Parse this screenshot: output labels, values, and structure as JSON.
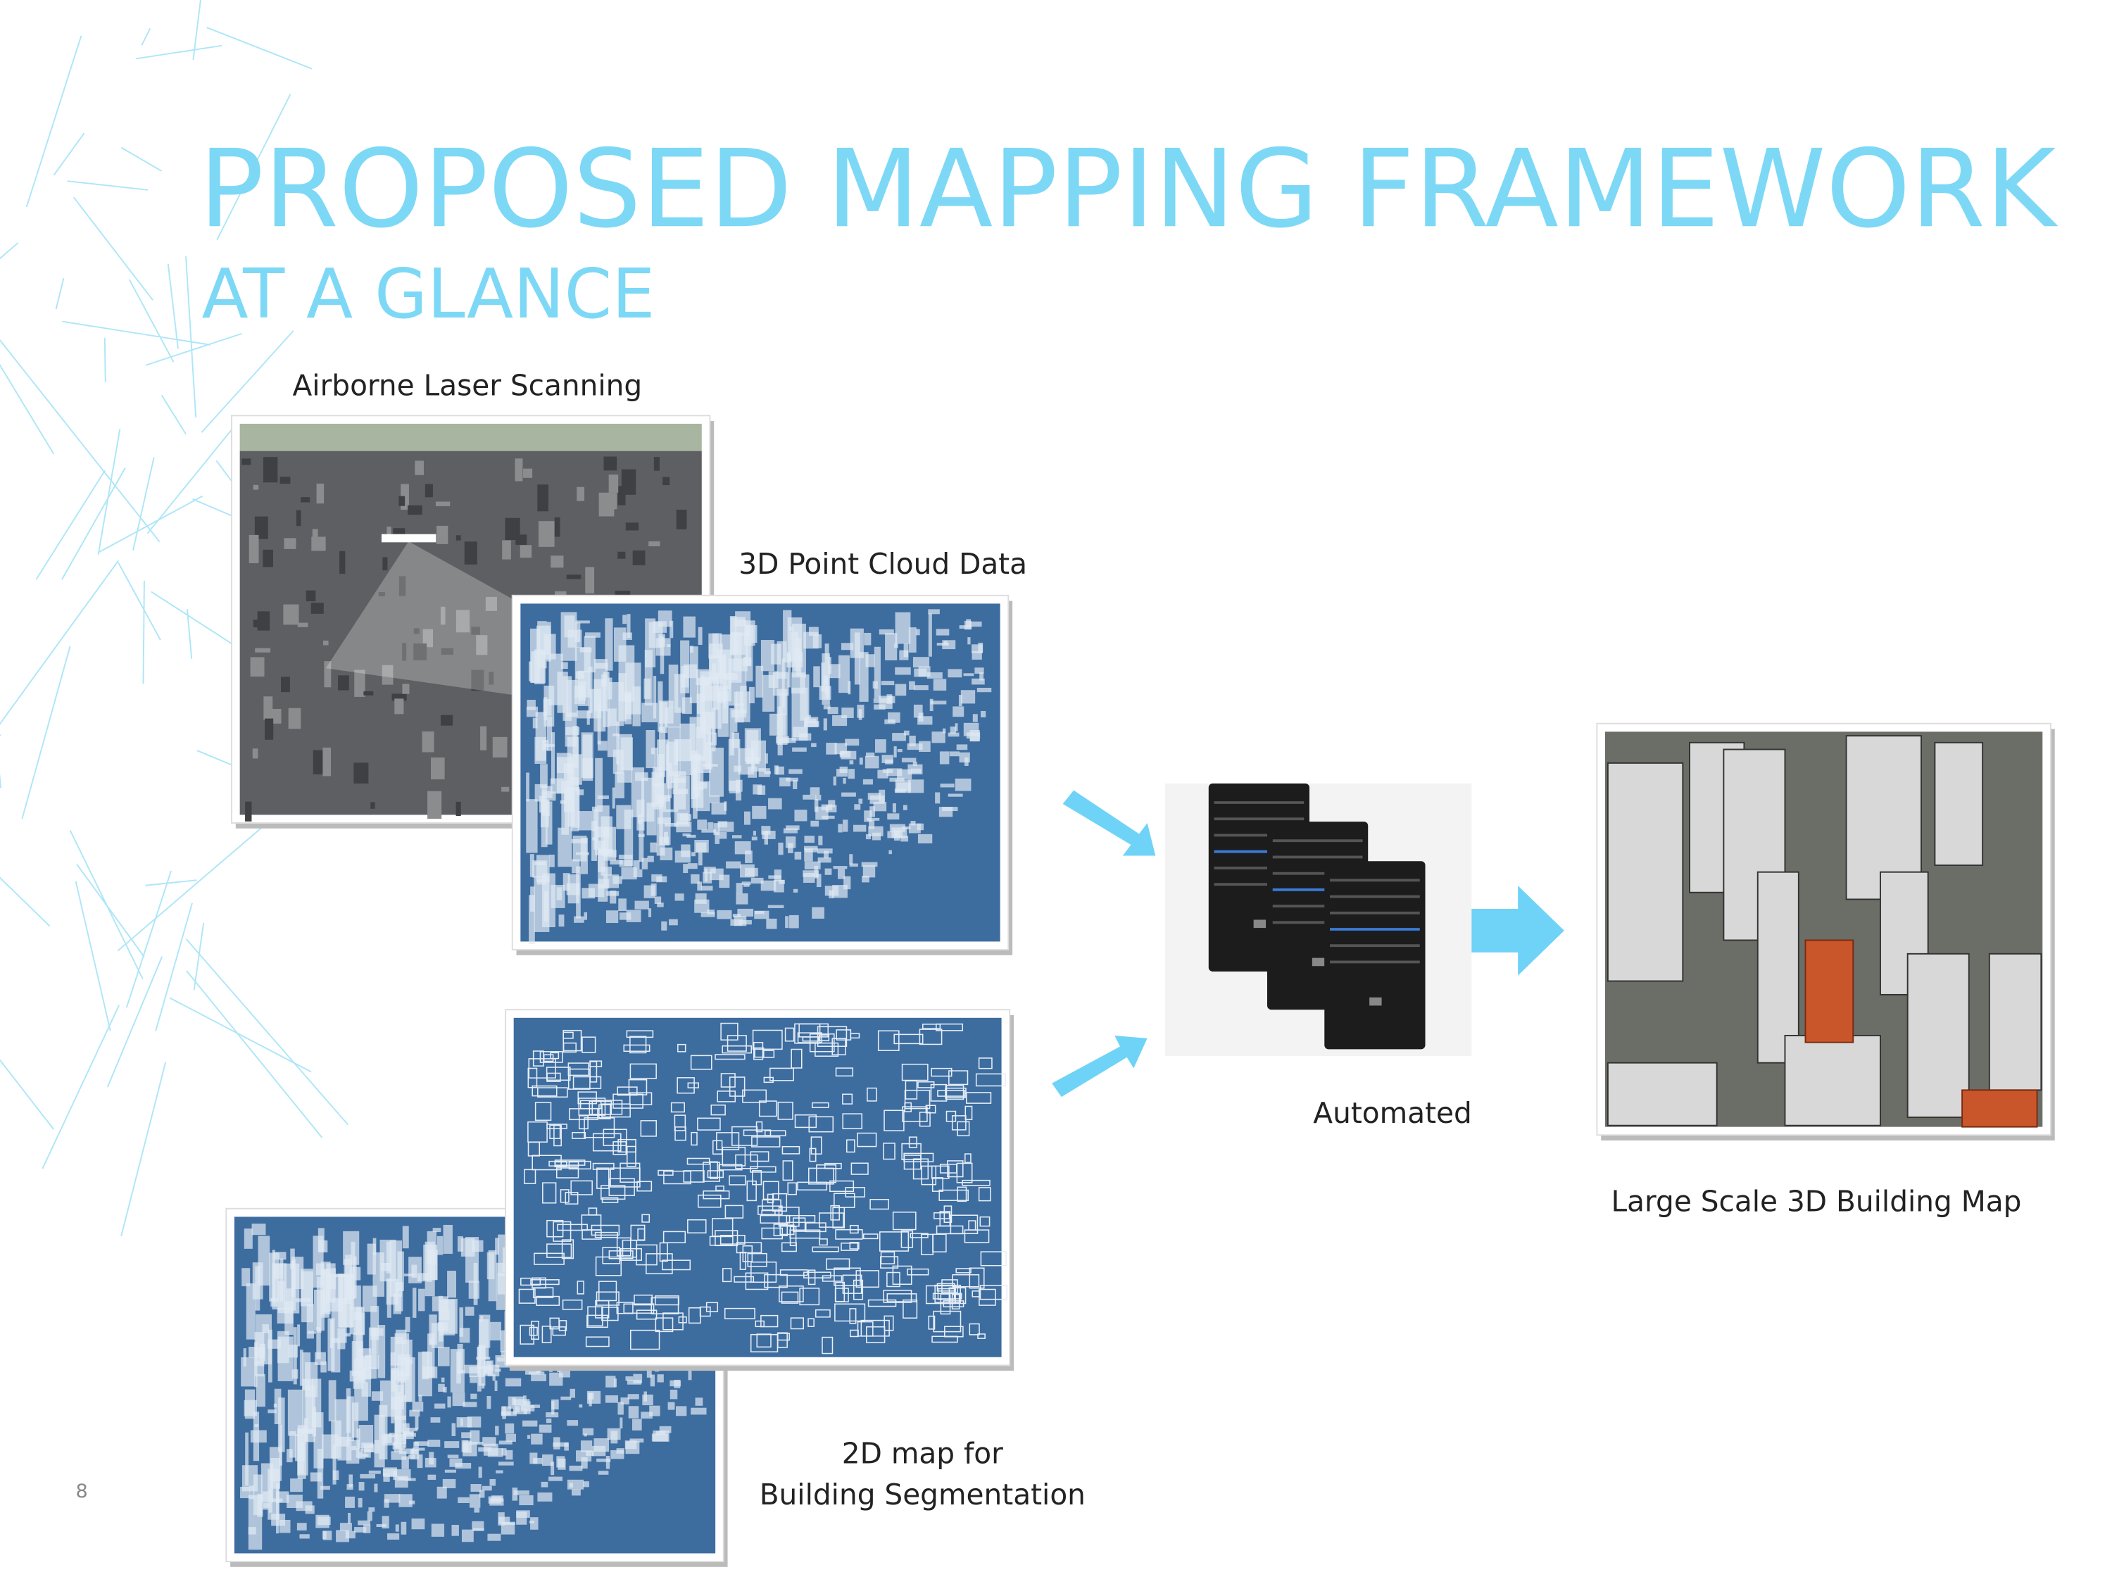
{
  "title": "PROPOSED MAPPING FRAMEWORK",
  "subtitle": "AT A GLANCE",
  "steps": {
    "airborne": {
      "label": "Airborne Laser Scanning"
    },
    "point_cloud": {
      "label": "3D Point Cloud Data"
    },
    "map_2d": {
      "label_lines": [
        "2D map for",
        "Building Segmentation"
      ]
    },
    "processing": {
      "label": "Automated"
    },
    "result": {
      "label": "Large Scale 3D Building Map"
    }
  },
  "page_number": "8"
}
